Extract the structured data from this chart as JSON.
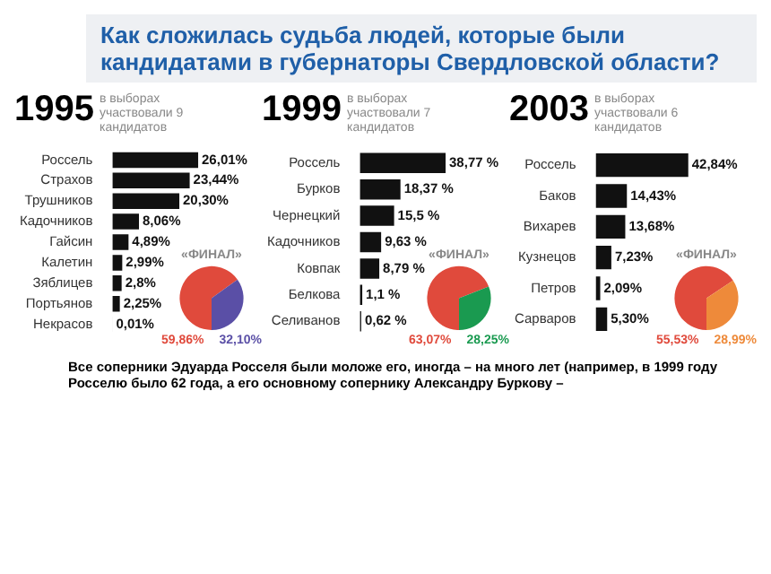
{
  "chart_data": [
    {
      "type": "bar",
      "orientation": "horizontal",
      "title": "1995",
      "subtitle": "в выборах участвовали 9 кандидатов",
      "annotations": [
        "Как сложилась судьба людей, которые были кандидатами в губернаторы Свердловской области?",
        "Все соперники Эдуарда Росселя были моложе его, иногда – на много лет (например, в 1999 году Росселю было 62 года, а его основному сопернику Александру Буркову –"
      ],
      "categories": [
        "Россель",
        "Страхов",
        "Трушников",
        "Кадочников",
        "Гайсин",
        "Калетин",
        "Зяблицев",
        "Портьянов",
        "Некрасов"
      ],
      "values": [
        26.01,
        23.44,
        20.3,
        8.06,
        4.89,
        2.99,
        2.8,
        2.25,
        0.01
      ],
      "value_labels": [
        "26,01%",
        "23,44%",
        "20,30%",
        "8,06%",
        "4,89%",
        "2,99%",
        "2,8%",
        "2,25%",
        "0,01%"
      ],
      "color": "#111111"
    },
    {
      "type": "pie",
      "title": "«ФИНАЛ»",
      "categories": [
        null,
        null
      ],
      "values": [
        59.86,
        32.1
      ],
      "value_labels": [
        "59,86%",
        "32,10%"
      ],
      "colors": [
        "#e04a3c",
        "#5a4fa6"
      ]
    },
    {
      "type": "bar",
      "orientation": "horizontal",
      "title": "1999",
      "subtitle": "в выборах участвовали 7 кандидатов",
      "categories": [
        "Россель",
        "Бурков",
        "Чернецкий",
        "Кадочников",
        "Ковпак",
        "Белкова",
        "Селиванов"
      ],
      "values": [
        38.77,
        18.37,
        15.5,
        9.63,
        8.79,
        1.1,
        0.62
      ],
      "value_labels": [
        "38,77 %",
        "18,37 %",
        "15,5 %",
        "9,63 %",
        "8,79 %",
        "1,1 %",
        "0,62 %"
      ],
      "color": "#111111"
    },
    {
      "type": "pie",
      "title": "«ФИНАЛ»",
      "categories": [
        null,
        null
      ],
      "values": [
        63.07,
        28.25
      ],
      "value_labels": [
        "63,07%",
        "28,25%"
      ],
      "colors": [
        "#e04a3c",
        "#1a9a50"
      ]
    },
    {
      "type": "bar",
      "orientation": "horizontal",
      "title": "2003",
      "subtitle": "в выборах участвовали 6 кандидатов",
      "categories": [
        "Россель",
        "Баков",
        "Вихарев",
        "Кузнецов",
        "Петров",
        "Сарваров"
      ],
      "values": [
        42.84,
        14.43,
        13.68,
        7.23,
        2.09,
        5.3
      ],
      "value_labels": [
        "42,84%",
        "14,43%",
        "13,68%",
        "7,23%",
        "2,09%",
        "5,30%"
      ],
      "color": "#111111"
    },
    {
      "type": "pie",
      "title": "«ФИНАЛ»",
      "categories": [
        null,
        null
      ],
      "values": [
        55.53,
        28.99
      ],
      "value_labels": [
        "55,53%",
        "28,99%"
      ],
      "colors": [
        "#e04a3c",
        "#ee8a3a"
      ]
    }
  ]
}
